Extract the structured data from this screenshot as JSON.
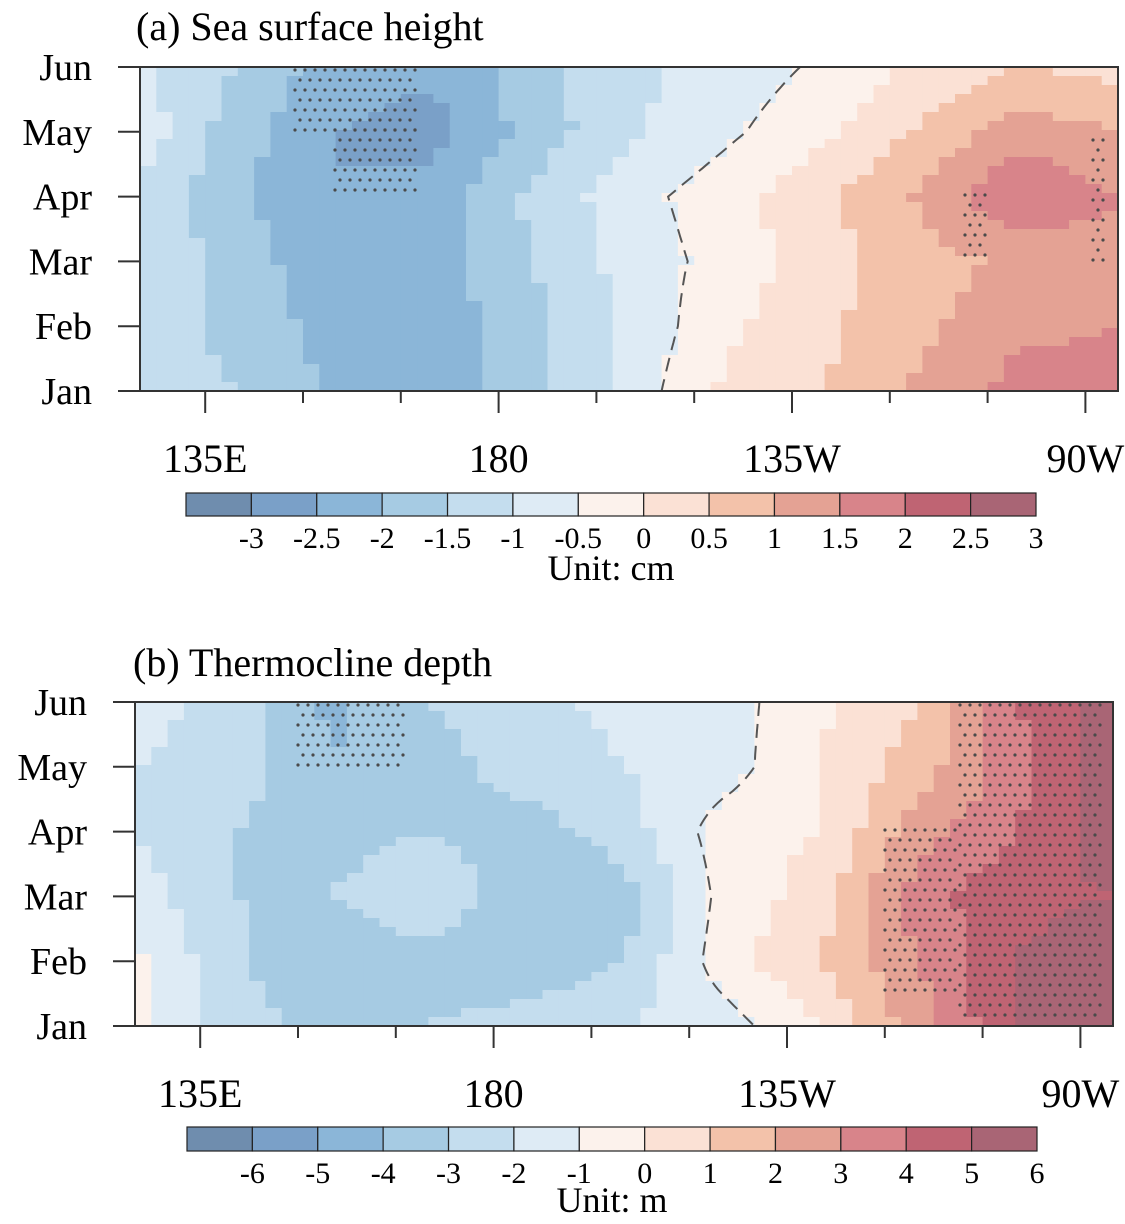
{
  "chart_data": [
    {
      "type": "heatmap",
      "title": "(a) Sea surface height",
      "y_ticks": [
        "Jan",
        "Feb",
        "Mar",
        "Apr",
        "May",
        "Jun"
      ],
      "x_ticks": [
        "135E",
        "180",
        "135W",
        "90W"
      ],
      "x_tick_lon_east": [
        135,
        180,
        225,
        270
      ],
      "x_range_lon_east": [
        125,
        275
      ],
      "colorbar": {
        "ticks": [
          "-3",
          "-2.5",
          "-2",
          "-1.5",
          "-1",
          "-0.5",
          "0",
          "0.5",
          "1",
          "1.5",
          "2",
          "2.5",
          "3"
        ],
        "unit": "Unit:  cm"
      },
      "lons": [
        125,
        140,
        155,
        170,
        185,
        200,
        215,
        230,
        245,
        260,
        275
      ],
      "months": [
        "Jan",
        "Feb",
        "Mar",
        "Apr",
        "May",
        "Jun"
      ],
      "values": [
        [
          -0.6,
          -1.0,
          -1.6,
          -1.8,
          -1.1,
          -0.3,
          0.6,
          1.0,
          1.6,
          2.2,
          2.1
        ],
        [
          -0.7,
          -1.2,
          -1.7,
          -1.8,
          -1.2,
          -0.4,
          0.4,
          0.9,
          1.4,
          1.9,
          2.0
        ],
        [
          -0.5,
          -1.3,
          -1.8,
          -1.7,
          -1.0,
          -0.3,
          0.2,
          0.8,
          1.3,
          1.6,
          1.8
        ],
        [
          -0.6,
          -1.4,
          -2.0,
          -1.8,
          -0.9,
          -0.2,
          0.3,
          0.9,
          1.6,
          2.5,
          2.0
        ],
        [
          -0.2,
          -1.3,
          -2.0,
          -2.2,
          -1.3,
          -0.6,
          -0.1,
          0.4,
          1.1,
          1.8,
          1.5
        ],
        [
          -0.4,
          -1.0,
          -1.8,
          -1.9,
          -1.2,
          -0.6,
          -0.3,
          0.1,
          0.6,
          1.0,
          0.8
        ]
      ]
    },
    {
      "type": "heatmap",
      "title": "(b) Thermocline depth",
      "y_ticks": [
        "Jan",
        "Feb",
        "Mar",
        "Apr",
        "May",
        "Jun"
      ],
      "x_ticks": [
        "135E",
        "180",
        "135W",
        "90W"
      ],
      "x_tick_lon_east": [
        135,
        180,
        225,
        270
      ],
      "x_range_lon_east": [
        125,
        275
      ],
      "colorbar": {
        "ticks": [
          "-6",
          "-5",
          "-4",
          "-3",
          "-2",
          "-1",
          "0",
          "1",
          "2",
          "3",
          "4",
          "5",
          "6"
        ],
        "unit": "Unit:  m"
      },
      "lons": [
        125,
        140,
        155,
        170,
        185,
        200,
        215,
        230,
        245,
        260,
        275
      ],
      "months": [
        "Jan",
        "Feb",
        "Mar",
        "Apr",
        "May",
        "Jun"
      ],
      "values": [
        [
          0.5,
          -1.5,
          -2.5,
          -2.0,
          -1.5,
          -1.0,
          -0.5,
          1.0,
          3.5,
          6.0,
          6.5
        ],
        [
          0.3,
          -1.8,
          -3.0,
          -2.5,
          -2.8,
          -2.0,
          0.5,
          2.0,
          4.0,
          6.0,
          6.5
        ],
        [
          -0.5,
          -2.0,
          -2.0,
          -1.0,
          -3.0,
          -2.5,
          0.3,
          1.5,
          4.5,
          5.8,
          6.0
        ],
        [
          -1.0,
          -2.0,
          -2.5,
          -2.0,
          -2.5,
          -1.5,
          0.5,
          1.0,
          3.5,
          5.0,
          6.5
        ],
        [
          -1.0,
          -1.5,
          -3.0,
          -2.5,
          -1.5,
          -1.0,
          -0.5,
          1.0,
          2.5,
          4.5,
          6.5
        ],
        [
          -0.5,
          -1.5,
          -3.2,
          -2.0,
          -1.2,
          -0.8,
          -0.5,
          0.8,
          2.0,
          5.0,
          6.5
        ]
      ]
    }
  ],
  "colors": {
    "levels": [
      "#6f8dae",
      "#7aa0c8",
      "#8bb6d8",
      "#a6cbe3",
      "#c4ddee",
      "#deebf5",
      "#fcf2ec",
      "#fbe1d5",
      "#f3c2aa",
      "#e4a294",
      "#d8848a",
      "#bf6473",
      "#a96575"
    ]
  }
}
